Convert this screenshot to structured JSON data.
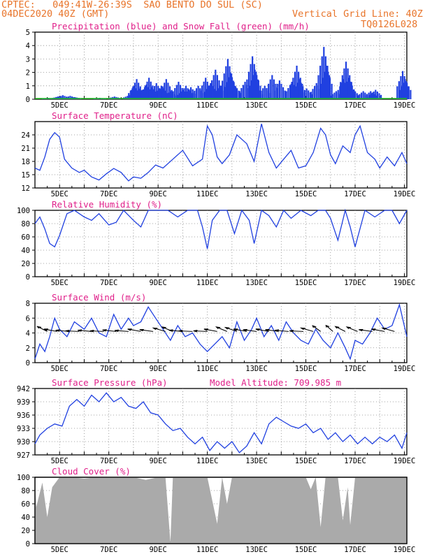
{
  "header": {
    "line1_left": "CPTEC:   049:41W-26:39S  SAO BENTO DO SUL (SC)",
    "line2_left": "04DEC2020 40Z (GMT)",
    "line2_right": "Vertical Grid Line: 40Z",
    "line3_right": "TQ0126L028"
  },
  "colors": {
    "header": "#e8742a",
    "title": "#e0208a",
    "series": "#2040e0",
    "snow": "#20c020",
    "cloud": "#aaaaaa",
    "arrow": "#000000"
  },
  "x_axis": {
    "labels": [
      "5DEC",
      "7DEC",
      "9DEC",
      "11DEC",
      "13DEC",
      "15DEC",
      "17DEC",
      "19DEC"
    ]
  },
  "panels": {
    "precip": {
      "title": "Precipitation (blue) and Snow Fall (green) (mm/h)"
    },
    "temp": {
      "title": "Surface Temperature (nC)"
    },
    "rh": {
      "title": "Relative Humidity (%)"
    },
    "wind": {
      "title": "Surface Wind (m/s)"
    },
    "pres": {
      "title": "Surface Pressure (hPa)",
      "extra": "Model Altitude: 709.985 m"
    },
    "cloud": {
      "title": "Cloud Cover (%)"
    }
  },
  "chart_data": [
    {
      "type": "bar",
      "title": "Precipitation (blue) and Snow Fall (green) (mm/h)",
      "ylim": [
        0,
        5
      ],
      "yticks": [
        0,
        1,
        2,
        3,
        4,
        5
      ],
      "xlim": [
        4.0,
        19.1
      ],
      "series": [
        {
          "name": "Precipitation",
          "values": [
            [
              4.5,
              0.1
            ],
            [
              4.9,
              0.2
            ],
            [
              5.1,
              0.3
            ],
            [
              5.4,
              0.25
            ],
            [
              5.6,
              0.15
            ],
            [
              6.6,
              0.1
            ],
            [
              7.2,
              0.2
            ],
            [
              7.8,
              0.3
            ],
            [
              8.0,
              1.0
            ],
            [
              8.1,
              1.5
            ],
            [
              8.2,
              0.8
            ],
            [
              8.5,
              1.1
            ],
            [
              8.6,
              1.6
            ],
            [
              8.7,
              0.9
            ],
            [
              8.9,
              1.2
            ],
            [
              9.1,
              1.0
            ],
            [
              9.3,
              1.5
            ],
            [
              9.5,
              0.6
            ],
            [
              9.8,
              1.3
            ],
            [
              10.0,
              0.7
            ],
            [
              10.1,
              1.0
            ],
            [
              10.3,
              0.9
            ],
            [
              10.6,
              1.0
            ],
            [
              10.9,
              1.6
            ],
            [
              11.1,
              1.2
            ],
            [
              11.3,
              2.2
            ],
            [
              11.5,
              1.0
            ],
            [
              11.8,
              3.0
            ],
            [
              11.9,
              2.0
            ],
            [
              12.1,
              1.0
            ],
            [
              12.5,
              1.3
            ],
            [
              12.8,
              3.2
            ],
            [
              12.9,
              2.2
            ],
            [
              13.0,
              0.8
            ],
            [
              13.3,
              1.0
            ],
            [
              13.6,
              1.8
            ],
            [
              13.9,
              1.4
            ],
            [
              14.4,
              1.3
            ],
            [
              14.6,
              2.5
            ],
            [
              14.7,
              1.5
            ],
            [
              15.0,
              0.8
            ],
            [
              15.4,
              1.2
            ],
            [
              15.7,
              3.9
            ],
            [
              15.8,
              2.5
            ],
            [
              16.2,
              0.6
            ],
            [
              16.5,
              1.5
            ],
            [
              16.6,
              2.8
            ],
            [
              16.7,
              1.6
            ],
            [
              16.9,
              0.7
            ],
            [
              17.3,
              0.6
            ],
            [
              17.6,
              0.6
            ],
            [
              17.8,
              0.7
            ],
            [
              18.9,
              2.1
            ],
            [
              19.0,
              1.5
            ]
          ]
        },
        {
          "name": "Snow Fall",
          "values": []
        }
      ]
    },
    {
      "type": "line",
      "title": "Surface Temperature (nC)",
      "ylim": [
        12,
        27
      ],
      "yticks": [
        12,
        15,
        18,
        21,
        24
      ],
      "x": [
        4.0,
        4.2,
        4.4,
        4.6,
        4.8,
        5.0,
        5.2,
        5.5,
        5.8,
        6.0,
        6.3,
        6.6,
        6.9,
        7.2,
        7.5,
        7.8,
        8.0,
        8.3,
        8.6,
        8.9,
        9.2,
        9.6,
        10.0,
        10.4,
        10.8,
        11.0,
        11.2,
        11.4,
        11.6,
        11.9,
        12.2,
        12.6,
        12.9,
        13.2,
        13.5,
        13.8,
        14.1,
        14.4,
        14.7,
        15.0,
        15.3,
        15.6,
        15.8,
        16.0,
        16.2,
        16.5,
        16.8,
        17.0,
        17.2,
        17.5,
        17.8,
        18.0,
        18.3,
        18.6,
        18.9,
        19.1
      ],
      "values": [
        16.5,
        16,
        19,
        23,
        24.5,
        23.5,
        18.5,
        16.5,
        15.5,
        16,
        14.5,
        13.8,
        15.2,
        16.4,
        15.5,
        13.6,
        14.5,
        14.2,
        15.5,
        17.2,
        16.5,
        18.5,
        20.5,
        17,
        18.5,
        26.0,
        24,
        19,
        17.5,
        19.5,
        24,
        22,
        18,
        26.5,
        20,
        16.5,
        18.5,
        20.5,
        16.5,
        17,
        20,
        25.5,
        24,
        19.5,
        17.5,
        21.5,
        20,
        24,
        26,
        20,
        18.5,
        16.5,
        19,
        17,
        20,
        17.5
      ]
    },
    {
      "type": "line",
      "title": "Relative Humidity (%)",
      "ylim": [
        0,
        100
      ],
      "yticks": [
        0,
        20,
        40,
        60,
        80,
        100
      ],
      "x": [
        4.0,
        4.2,
        4.4,
        4.6,
        4.8,
        5.0,
        5.3,
        5.6,
        6.0,
        6.3,
        6.6,
        7.0,
        7.3,
        7.6,
        8.0,
        8.3,
        8.6,
        9.0,
        9.4,
        9.8,
        10.2,
        10.6,
        10.8,
        11.0,
        11.2,
        11.5,
        11.8,
        12.1,
        12.4,
        12.7,
        12.9,
        13.2,
        13.5,
        13.8,
        14.1,
        14.4,
        14.8,
        15.2,
        15.5,
        15.8,
        16.0,
        16.3,
        16.6,
        16.8,
        17.0,
        17.4,
        17.8,
        18.2,
        18.5,
        18.8,
        19.1
      ],
      "values": [
        80,
        90,
        72,
        50,
        45,
        62,
        95,
        100,
        90,
        85,
        95,
        78,
        82,
        100,
        85,
        75,
        100,
        100,
        100,
        90,
        100,
        100,
        75,
        42,
        85,
        100,
        100,
        65,
        100,
        85,
        50,
        100,
        92,
        75,
        100,
        88,
        100,
        92,
        100,
        100,
        88,
        55,
        100,
        75,
        45,
        100,
        90,
        100,
        100,
        80,
        100
      ]
    },
    {
      "type": "line",
      "title": "Surface Wind (m/s)",
      "ylim": [
        0,
        8
      ],
      "yticks": [
        0,
        2,
        4,
        6,
        8
      ],
      "x": [
        4.0,
        4.2,
        4.4,
        4.6,
        4.8,
        5.0,
        5.3,
        5.6,
        6.0,
        6.3,
        6.6,
        6.9,
        7.2,
        7.5,
        7.8,
        8.0,
        8.3,
        8.6,
        8.9,
        9.2,
        9.5,
        9.8,
        10.1,
        10.4,
        10.7,
        11.0,
        11.3,
        11.6,
        11.9,
        12.2,
        12.5,
        12.8,
        13.0,
        13.3,
        13.6,
        13.9,
        14.2,
        14.5,
        14.8,
        15.1,
        15.4,
        15.7,
        16.0,
        16.3,
        16.6,
        16.8,
        17.0,
        17.3,
        17.6,
        17.9,
        18.2,
        18.5,
        18.8,
        19.1
      ],
      "values": [
        0.5,
        2.5,
        1.5,
        3.5,
        6,
        4.5,
        3.5,
        5.5,
        4.5,
        6,
        4,
        3.5,
        6.5,
        4.5,
        6,
        5,
        5.5,
        7.5,
        6,
        4.5,
        3,
        5,
        3.5,
        4,
        2.5,
        1.5,
        2.5,
        3.5,
        2,
        5.5,
        3,
        4.5,
        6,
        3.5,
        5,
        3,
        5.5,
        4,
        3,
        2.5,
        4.5,
        3,
        2,
        4,
        2,
        0.5,
        3,
        2.5,
        4,
        6,
        4.5,
        5,
        7.8,
        3.5
      ],
      "arrows": [
        [
          4.5,
          135
        ],
        [
          4.9,
          160
        ],
        [
          5.4,
          170
        ],
        [
          5.8,
          175
        ],
        [
          6.3,
          170
        ],
        [
          6.8,
          175
        ],
        [
          7.3,
          168
        ],
        [
          7.8,
          172
        ],
        [
          8.3,
          160
        ],
        [
          8.8,
          165
        ],
        [
          9.3,
          150
        ],
        [
          9.6,
          140
        ],
        [
          10.0,
          170
        ],
        [
          10.4,
          175
        ],
        [
          11.0,
          175
        ],
        [
          11.4,
          160
        ],
        [
          11.8,
          140
        ],
        [
          12.2,
          145
        ],
        [
          12.6,
          160
        ],
        [
          13.0,
          165
        ],
        [
          13.5,
          160
        ],
        [
          13.9,
          165
        ],
        [
          14.3,
          170
        ],
        [
          14.9,
          175
        ],
        [
          15.3,
          150
        ],
        [
          15.6,
          125
        ],
        [
          16.1,
          120
        ],
        [
          16.6,
          135
        ],
        [
          17.1,
          140
        ],
        [
          17.7,
          165
        ],
        [
          18.2,
          160
        ],
        [
          18.6,
          150
        ]
      ]
    },
    {
      "type": "line",
      "title": "Surface Pressure (hPa)",
      "ylim": [
        927,
        942
      ],
      "yticks": [
        927,
        930,
        933,
        936,
        939,
        942
      ],
      "x": [
        4.0,
        4.2,
        4.5,
        4.8,
        5.1,
        5.4,
        5.7,
        6.0,
        6.3,
        6.6,
        6.9,
        7.2,
        7.5,
        7.8,
        8.1,
        8.4,
        8.7,
        9.0,
        9.3,
        9.6,
        9.9,
        10.2,
        10.5,
        10.8,
        11.1,
        11.4,
        11.7,
        12.0,
        12.3,
        12.6,
        12.9,
        13.2,
        13.5,
        13.8,
        14.1,
        14.4,
        14.7,
        15.0,
        15.3,
        15.6,
        15.9,
        16.2,
        16.5,
        16.8,
        17.1,
        17.4,
        17.7,
        18.0,
        18.3,
        18.6,
        18.9,
        19.1
      ],
      "values": [
        929.5,
        931.5,
        933,
        934,
        933.5,
        938,
        939.5,
        938,
        940.5,
        939,
        941,
        939,
        940,
        938,
        937.5,
        939,
        936.5,
        936,
        934,
        932.5,
        933,
        931,
        929.5,
        931,
        928,
        930,
        928.5,
        930,
        927.5,
        929,
        932,
        929.5,
        934,
        935.5,
        934.5,
        933.5,
        933,
        934,
        932,
        933,
        930.5,
        932,
        930,
        931.5,
        929.5,
        931,
        929.5,
        931,
        930,
        931.5,
        928.5,
        932
      ]
    },
    {
      "type": "area",
      "title": "Cloud Cover (%)",
      "ylim": [
        0,
        100
      ],
      "yticks": [
        0,
        20,
        40,
        60,
        80,
        100
      ],
      "x": [
        4.0,
        4.05,
        4.3,
        4.5,
        4.7,
        5.0,
        5.5,
        6.0,
        6.5,
        7.0,
        7.5,
        8.0,
        8.5,
        9.0,
        9.3,
        9.5,
        9.6,
        10.0,
        10.5,
        11.0,
        11.4,
        11.6,
        11.8,
        12.0,
        12.5,
        13.0,
        13.5,
        14.0,
        14.5,
        15.0,
        15.2,
        15.4,
        15.6,
        15.8,
        16.0,
        16.3,
        16.5,
        16.7,
        16.8,
        17.0,
        17.5,
        18.0,
        18.5,
        19.1
      ],
      "values": [
        100,
        55,
        92,
        40,
        85,
        100,
        100,
        98,
        100,
        100,
        100,
        100,
        96,
        100,
        100,
        2,
        100,
        100,
        100,
        100,
        30,
        100,
        60,
        100,
        100,
        100,
        100,
        100,
        100,
        100,
        82,
        100,
        25,
        100,
        100,
        100,
        35,
        85,
        28,
        100,
        100,
        100,
        100,
        100
      ]
    }
  ]
}
